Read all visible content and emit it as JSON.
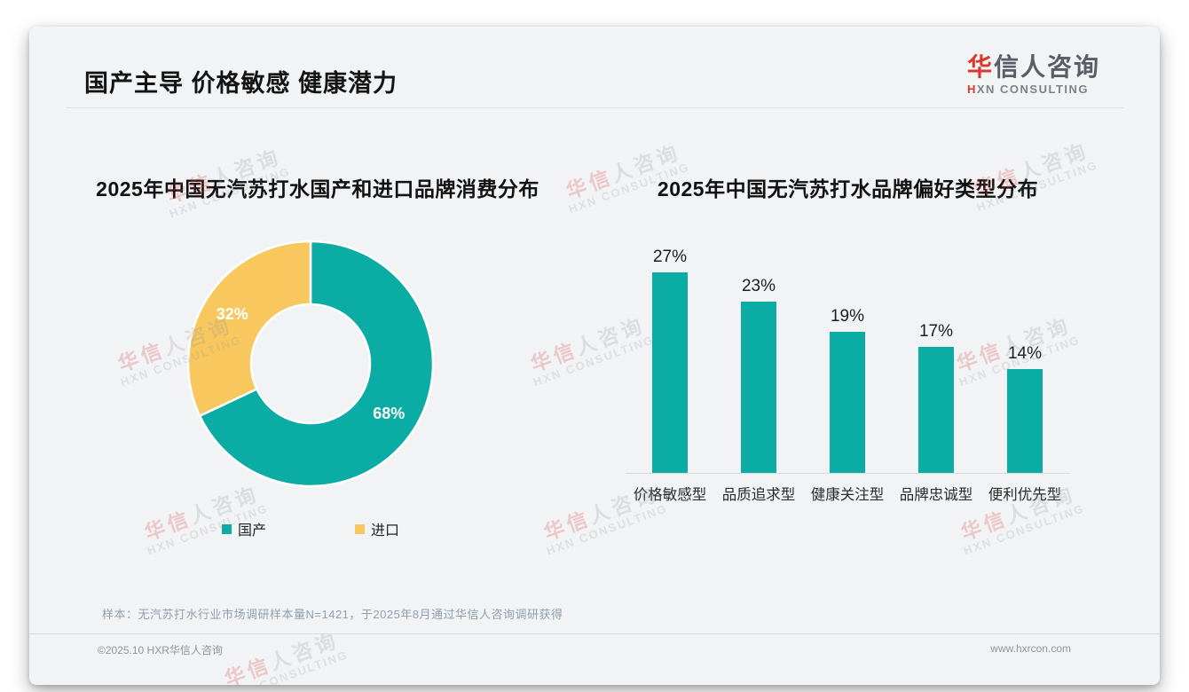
{
  "page": {
    "title": "国产主导 价格敏感 健康潜力",
    "logo": {
      "cn_first": "华",
      "cn_rest": "信人咨询",
      "en_first": "H",
      "en_rest": "XN CONSULTING"
    },
    "footnote": "样本：无汽苏打水行业市场调研样本量N=1421，于2025年8月通过华信人咨询调研获得",
    "footer_left": "©2025.10 HXR华信人咨询",
    "footer_right": "www.hxrcon.com",
    "watermark": {
      "line1": "华信人咨询",
      "line2": "HXN CONSULTING"
    }
  },
  "colors": {
    "teal": "#0aaca4",
    "yellow": "#f8c85e",
    "card_background": "#f2f3f5",
    "logo_red": "#d9382f"
  },
  "chart_data": [
    {
      "type": "pie",
      "donut": true,
      "title": "2025年中国无汽苏打水国产和进口品牌消费分布",
      "labels": [
        "国产",
        "进口"
      ],
      "values": [
        68,
        32
      ],
      "unit": "%",
      "data_labels": [
        "68%",
        "32%"
      ],
      "slice_colors": [
        "#0aaca4",
        "#f8c85e"
      ],
      "start_angle": "12-oclock-clockwise",
      "legend_position": "bottom"
    },
    {
      "type": "bar",
      "title": "2025年中国无汽苏打水品牌偏好类型分布",
      "categories": [
        "价格敏感型",
        "品质追求型",
        "健康关注型",
        "品牌忠诚型",
        "便利优先型"
      ],
      "values": [
        27,
        23,
        19,
        17,
        14
      ],
      "unit": "%",
      "data_labels": [
        "27%",
        "23%",
        "19%",
        "17%",
        "14%"
      ],
      "bar_color": "#0aaca4",
      "ylim": [
        0,
        30
      ],
      "grid": false,
      "legend": false,
      "xlabel": "",
      "ylabel": ""
    }
  ]
}
